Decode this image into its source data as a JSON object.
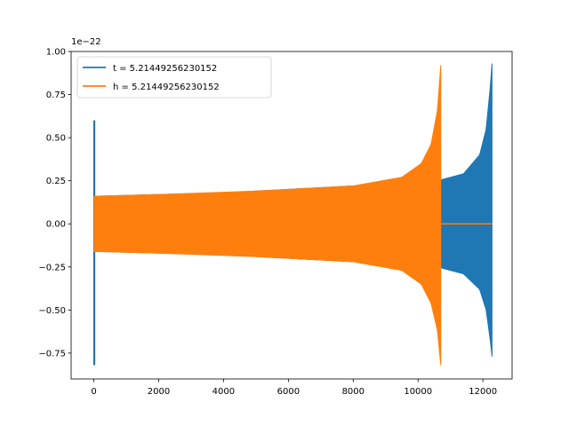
{
  "chart_data": {
    "type": "line",
    "title": "",
    "xlabel": "",
    "ylabel": "",
    "y_offset_label": "1e−22",
    "xlim": [
      -700,
      12900
    ],
    "ylim": [
      -0.9,
      1.0
    ],
    "x_ticks": [
      {
        "value": 0,
        "label": "0"
      },
      {
        "value": 2000,
        "label": "2000"
      },
      {
        "value": 4000,
        "label": "4000"
      },
      {
        "value": 6000,
        "label": "6000"
      },
      {
        "value": 8000,
        "label": "8000"
      },
      {
        "value": 10000,
        "label": "10000"
      },
      {
        "value": 12000,
        "label": "12000"
      }
    ],
    "y_ticks": [
      {
        "value": -0.75,
        "label": "−0.75"
      },
      {
        "value": -0.5,
        "label": "−0.50"
      },
      {
        "value": -0.25,
        "label": "−0.25"
      },
      {
        "value": 0.0,
        "label": "0.00"
      },
      {
        "value": 0.25,
        "label": "0.25"
      },
      {
        "value": 0.5,
        "label": "0.50"
      },
      {
        "value": 0.75,
        "label": "0.75"
      },
      {
        "value": 1.0,
        "label": "1.00"
      }
    ],
    "grid": false,
    "legend_position": "top-left",
    "series": [
      {
        "name": "t = 5.21449256230152",
        "color": "#1f77b4",
        "start_spike": {
          "x": 0,
          "max": 0.6,
          "min": -0.82
        },
        "envelope": [
          {
            "x": 10,
            "max": 0.16,
            "min": -0.16
          },
          {
            "x": 4000,
            "max": 0.18,
            "min": -0.18
          },
          {
            "x": 8000,
            "max": 0.22,
            "min": -0.22
          },
          {
            "x": 10600,
            "max": 0.25,
            "min": -0.25
          },
          {
            "x": 11400,
            "max": 0.29,
            "min": -0.29
          },
          {
            "x": 11900,
            "max": 0.4,
            "min": -0.38
          },
          {
            "x": 12100,
            "max": 0.55,
            "min": -0.5
          },
          {
            "x": 12230,
            "max": 0.8,
            "min": -0.68
          },
          {
            "x": 12280,
            "max": 0.93,
            "min": -0.77
          }
        ],
        "end_x": 12290
      },
      {
        "name": "h = 5.21449256230152",
        "color": "#ff7f0e",
        "start_spike": {
          "x": 0,
          "max": 0.0,
          "min": 0.0
        },
        "envelope": [
          {
            "x": 10,
            "max": 0.16,
            "min": -0.16
          },
          {
            "x": 2000,
            "max": 0.17,
            "min": -0.17
          },
          {
            "x": 5000,
            "max": 0.19,
            "min": -0.19
          },
          {
            "x": 8000,
            "max": 0.22,
            "min": -0.22
          },
          {
            "x": 9500,
            "max": 0.27,
            "min": -0.27
          },
          {
            "x": 10100,
            "max": 0.35,
            "min": -0.35
          },
          {
            "x": 10400,
            "max": 0.46,
            "min": -0.46
          },
          {
            "x": 10600,
            "max": 0.66,
            "min": -0.62
          },
          {
            "x": 10700,
            "max": 0.92,
            "min": -0.82
          }
        ],
        "flat_after": {
          "from": 10710,
          "to": 12290,
          "y": 0.0
        }
      }
    ]
  }
}
